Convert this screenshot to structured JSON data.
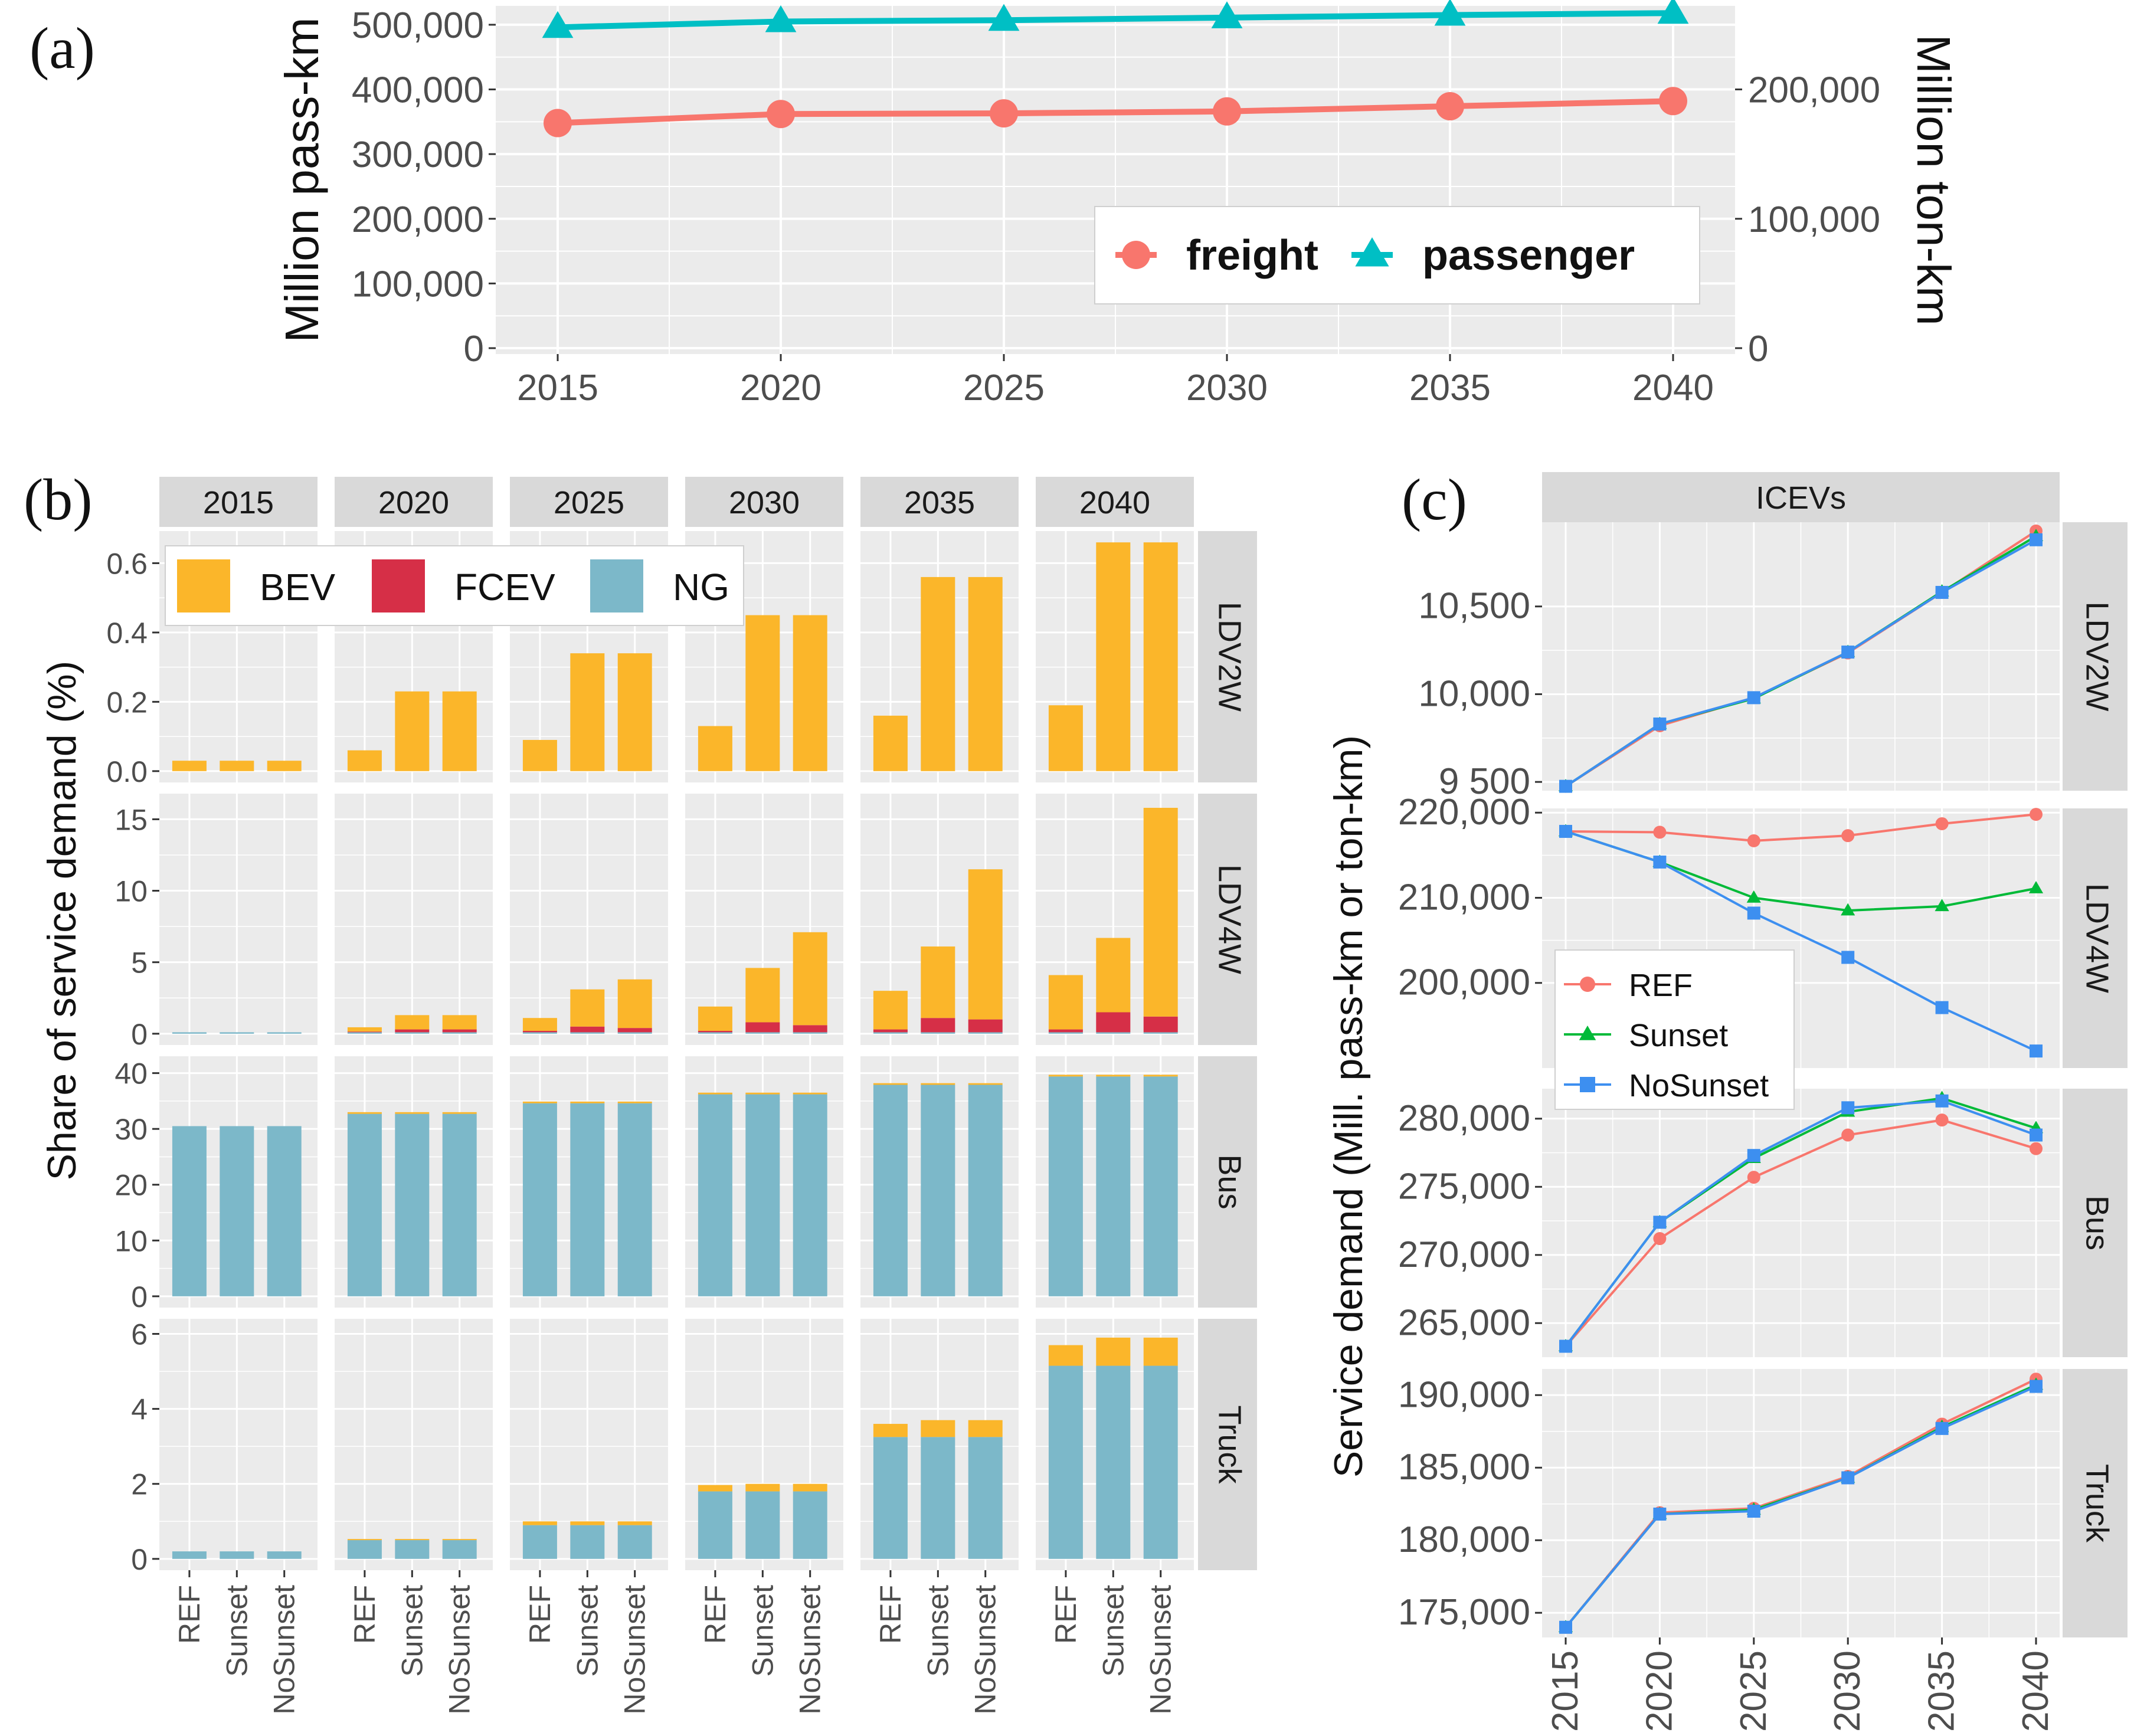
{
  "panel_labels": {
    "a": "(a)",
    "b": "(b)",
    "c": "(c)"
  },
  "colors": {
    "panel_bg": "#ebebeb",
    "grid": "#ffffff",
    "strip_bg": "#d9d9d9",
    "freight": "#f8766d",
    "passenger": "#00bfc4",
    "BEV": "#fbb62a",
    "FCEV": "#d62f47",
    "NG": "#7cb8c9",
    "REF": "#f8766d",
    "Sunset": "#00ba38",
    "NoSunset": "#3d8ff0"
  },
  "chart_data": [
    {
      "id": "a",
      "type": "line",
      "title": "",
      "xlabel": "",
      "ylabel": "Million pass-km",
      "ylabel_right": "Million ton-km",
      "x": [
        2015,
        2020,
        2025,
        2030,
        2035,
        2040
      ],
      "x_tick_labels": [
        "2015",
        "2020",
        "2025",
        "2030",
        "2035",
        "2040"
      ],
      "ylim": [
        0,
        520000
      ],
      "yticks": [
        0,
        100000,
        200000,
        300000,
        400000,
        500000
      ],
      "ytick_labels": [
        "0",
        "100,000",
        "200,000",
        "300,000",
        "400,000",
        "500,000"
      ],
      "y2lim": [
        0,
        260000
      ],
      "y2ticks": [
        0,
        100000,
        200000
      ],
      "y2tick_labels": [
        "0",
        "100,000",
        "200,000"
      ],
      "series": [
        {
          "name": "freight",
          "axis": "right",
          "marker": "circle",
          "values": [
            174000,
            181000,
            181500,
            183000,
            187000,
            191000
          ]
        },
        {
          "name": "passenger",
          "axis": "left",
          "marker": "triangle",
          "values": [
            496000,
            505000,
            507000,
            511000,
            515000,
            518000
          ]
        }
      ],
      "legend": [
        "freight",
        "passenger"
      ]
    },
    {
      "id": "b",
      "type": "bar",
      "stacked": true,
      "ylabel": "Share of service demand (%)",
      "years": [
        "2015",
        "2020",
        "2025",
        "2030",
        "2035",
        "2040"
      ],
      "categories": [
        "REF",
        "Sunset",
        "NoSunset"
      ],
      "stack_order": [
        "NG",
        "FCEV",
        "BEV"
      ],
      "legend": [
        "BEV",
        "FCEV",
        "NG"
      ],
      "rows": [
        {
          "name": "LDV2W",
          "ylim": [
            0,
            0.66
          ],
          "yticks": [
            0,
            0.2,
            0.4,
            0.6
          ],
          "ytick_labels": [
            "0.0",
            "0.2",
            "0.4",
            "0.6"
          ],
          "BEV": [
            [
              0.03,
              0.03,
              0.03
            ],
            [
              0.06,
              0.23,
              0.23
            ],
            [
              0.09,
              0.34,
              0.34
            ],
            [
              0.13,
              0.45,
              0.45
            ],
            [
              0.16,
              0.56,
              0.56
            ],
            [
              0.19,
              0.66,
              0.66
            ]
          ],
          "FCEV": [
            [
              0,
              0,
              0
            ],
            [
              0,
              0,
              0
            ],
            [
              0,
              0,
              0
            ],
            [
              0,
              0,
              0
            ],
            [
              0,
              0,
              0
            ],
            [
              0,
              0,
              0
            ]
          ],
          "NG": [
            [
              0,
              0,
              0
            ],
            [
              0,
              0,
              0
            ],
            [
              0,
              0,
              0
            ],
            [
              0,
              0,
              0
            ],
            [
              0,
              0,
              0
            ],
            [
              0,
              0,
              0
            ]
          ]
        },
        {
          "name": "LDV4W",
          "ylim": [
            0,
            16
          ],
          "yticks": [
            0,
            5,
            10,
            15
          ],
          "ytick_labels": [
            "0",
            "5",
            "10",
            "15"
          ],
          "BEV": [
            [
              0,
              0,
              0
            ],
            [
              0.3,
              1.0,
              1.0
            ],
            [
              0.9,
              2.6,
              3.4
            ],
            [
              1.7,
              3.8,
              6.5
            ],
            [
              2.7,
              5.0,
              10.5
            ],
            [
              3.8,
              5.2,
              14.6
            ]
          ],
          "FCEV": [
            [
              0,
              0,
              0
            ],
            [
              0.05,
              0.2,
              0.2
            ],
            [
              0.1,
              0.4,
              0.3
            ],
            [
              0.1,
              0.7,
              0.5
            ],
            [
              0.2,
              1.0,
              0.9
            ],
            [
              0.2,
              1.4,
              1.1
            ]
          ],
          "NG": [
            [
              0.1,
              0.1,
              0.1
            ],
            [
              0.1,
              0.1,
              0.1
            ],
            [
              0.1,
              0.1,
              0.1
            ],
            [
              0.1,
              0.1,
              0.1
            ],
            [
              0.1,
              0.1,
              0.1
            ],
            [
              0.1,
              0.1,
              0.1
            ]
          ]
        },
        {
          "name": "Bus",
          "ylim": [
            0,
            41
          ],
          "yticks": [
            0,
            10,
            20,
            30,
            40
          ],
          "ytick_labels": [
            "0",
            "10",
            "20",
            "30",
            "40"
          ],
          "BEV": [
            [
              0,
              0,
              0
            ],
            [
              0.3,
              0.3,
              0.3
            ],
            [
              0.3,
              0.3,
              0.3
            ],
            [
              0.3,
              0.3,
              0.3
            ],
            [
              0.3,
              0.3,
              0.3
            ],
            [
              0.3,
              0.3,
              0.3
            ]
          ],
          "FCEV": [
            [
              0,
              0,
              0
            ],
            [
              0,
              0,
              0
            ],
            [
              0,
              0,
              0
            ],
            [
              0,
              0,
              0
            ],
            [
              0,
              0,
              0
            ],
            [
              0,
              0,
              0
            ]
          ],
          "NG": [
            [
              30.5,
              30.5,
              30.5
            ],
            [
              32.7,
              32.7,
              32.7
            ],
            [
              34.6,
              34.6,
              34.6
            ],
            [
              36.2,
              36.2,
              36.2
            ],
            [
              37.9,
              37.9,
              37.9
            ],
            [
              39.4,
              39.4,
              39.4
            ]
          ]
        },
        {
          "name": "Truck",
          "ylim": [
            0,
            6.1
          ],
          "yticks": [
            0,
            2,
            4,
            6
          ],
          "ytick_labels": [
            "0",
            "2",
            "4",
            "6"
          ],
          "BEV": [
            [
              0,
              0,
              0
            ],
            [
              0.03,
              0.03,
              0.03
            ],
            [
              0.1,
              0.1,
              0.1
            ],
            [
              0.17,
              0.2,
              0.2
            ],
            [
              0.35,
              0.45,
              0.45
            ],
            [
              0.55,
              0.75,
              0.75
            ]
          ],
          "FCEV": [
            [
              0,
              0,
              0
            ],
            [
              0,
              0,
              0
            ],
            [
              0,
              0,
              0
            ],
            [
              0,
              0,
              0
            ],
            [
              0,
              0,
              0
            ],
            [
              0,
              0,
              0
            ]
          ],
          "NG": [
            [
              0.2,
              0.2,
              0.2
            ],
            [
              0.5,
              0.5,
              0.5
            ],
            [
              0.9,
              0.9,
              0.9
            ],
            [
              1.8,
              1.8,
              1.8
            ],
            [
              3.25,
              3.25,
              3.25
            ],
            [
              5.15,
              5.15,
              5.15
            ]
          ]
        }
      ]
    },
    {
      "id": "c",
      "type": "line",
      "strip": "ICEVs",
      "ylabel": "Service demand (Mill. pass-km or ton-km)",
      "x": [
        2015,
        2020,
        2025,
        2030,
        2035,
        2040
      ],
      "x_tick_labels": [
        "2015",
        "2020",
        "2025",
        "2030",
        "2035",
        "2040"
      ],
      "legend": [
        "REF",
        "Sunset",
        "NoSunset"
      ],
      "rows": [
        {
          "name": "LDV2W",
          "ylim": [
            9450,
            10980
          ],
          "yticks": [
            9500,
            10000,
            10500
          ],
          "ytick_labels": [
            "9 500",
            "10,000",
            "10,500"
          ],
          "series": [
            {
              "name": "REF",
              "values": [
                9475,
                9820,
                9980,
                10235,
                10580,
                10930
              ]
            },
            {
              "name": "Sunset",
              "values": [
                9475,
                9830,
                9975,
                10240,
                10585,
                10900
              ]
            },
            {
              "name": "NoSunset",
              "values": [
                9475,
                9830,
                9980,
                10240,
                10580,
                10880
              ]
            }
          ]
        },
        {
          "name": "LDV4W",
          "ylim": [
            190000,
            220500
          ],
          "yticks": [
            200000,
            210000,
            220000
          ],
          "ytick_labels": [
            "200,000",
            "210,000",
            "220,000"
          ],
          "series": [
            {
              "name": "REF",
              "values": [
                217800,
                217700,
                216700,
                217300,
                218700,
                219800
              ]
            },
            {
              "name": "Sunset",
              "values": [
                217800,
                214200,
                210000,
                208500,
                209000,
                211100
              ]
            },
            {
              "name": "NoSunset",
              "values": [
                217800,
                214200,
                208200,
                203000,
                197100,
                192000
              ]
            }
          ]
        },
        {
          "name": "Bus",
          "ylim": [
            262500,
            282200
          ],
          "yticks": [
            265000,
            270000,
            275000,
            280000
          ],
          "ytick_labels": [
            "265,000",
            "270,000",
            "275,000",
            "280,000"
          ],
          "series": [
            {
              "name": "REF",
              "values": [
                263300,
                271200,
                275700,
                278800,
                279900,
                277800
              ]
            },
            {
              "name": "Sunset",
              "values": [
                263300,
                272400,
                277100,
                280500,
                281500,
                279300
              ]
            },
            {
              "name": "NoSunset",
              "values": [
                263300,
                272400,
                277300,
                280800,
                281300,
                278800
              ]
            }
          ]
        },
        {
          "name": "Truck",
          "ylim": [
            173300,
            191800
          ],
          "yticks": [
            175000,
            180000,
            185000,
            190000
          ],
          "ytick_labels": [
            "175,000",
            "180,000",
            "185,000",
            "190,000"
          ],
          "series": [
            {
              "name": "REF",
              "values": [
                174000,
                181900,
                182200,
                184400,
                188000,
                191100
              ]
            },
            {
              "name": "Sunset",
              "values": [
                174000,
                181800,
                182100,
                184300,
                187800,
                190700
              ]
            },
            {
              "name": "NoSunset",
              "values": [
                174000,
                181800,
                182000,
                184300,
                187700,
                190600
              ]
            }
          ]
        }
      ]
    }
  ]
}
